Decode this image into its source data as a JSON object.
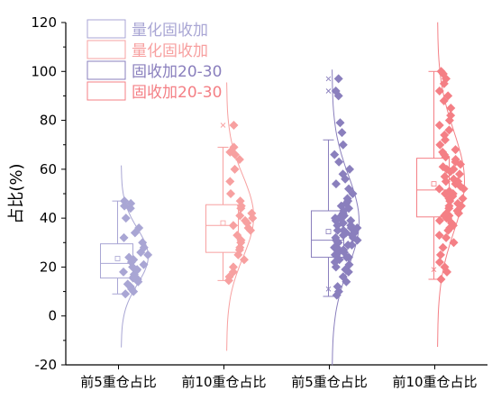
{
  "chart_data": {
    "type": "box-swarm-distribution",
    "ylabel": "占比(%)",
    "ylim": [
      -20,
      120
    ],
    "yticks": [
      -20,
      0,
      20,
      40,
      60,
      80,
      100,
      120
    ],
    "categories": [
      "前5重仓占比",
      "前10重仓占比",
      "前5重仓占比",
      "前10重仓占比"
    ],
    "legend": [
      {
        "label": "量化固收加",
        "color": "#a9a6d4"
      },
      {
        "label": "量化固收加",
        "color": "#f7a0a0"
      },
      {
        "label": "固收加20-30",
        "color": "#8a7fbd"
      },
      {
        "label": "固收加20-30",
        "color": "#f47f85"
      }
    ],
    "legend_position": "top-left",
    "series": [
      {
        "name": "量化固收加",
        "category": "前5重仓占比",
        "color": "#a9a6d4",
        "box": {
          "min": 9,
          "q1": 15.5,
          "median": 21.5,
          "q3": 29.5,
          "max": 47,
          "mean": 23.5
        },
        "outliers": [],
        "points": [
          9,
          10,
          11,
          12,
          13,
          14,
          15,
          15.5,
          16,
          17,
          18,
          18.5,
          19,
          20,
          21,
          22,
          23,
          24,
          25,
          26,
          28,
          30,
          32,
          34,
          36,
          40,
          44,
          45,
          46,
          47
        ]
      },
      {
        "name": "量化固收加",
        "category": "前10重仓占比",
        "color": "#f7a0a0",
        "box": {
          "min": 14.5,
          "q1": 26,
          "median": 37,
          "q3": 45.5,
          "max": 69,
          "mean": 38
        },
        "outliers": [
          78
        ],
        "points": [
          14.5,
          16,
          18,
          20,
          23,
          25,
          27,
          28,
          30,
          31,
          33,
          35,
          36,
          37,
          38,
          39,
          40,
          41,
          42,
          44,
          45,
          47,
          50,
          55,
          60,
          64,
          66,
          67,
          69,
          78
        ]
      },
      {
        "name": "固收加20-30",
        "category": "前5重仓占比",
        "color": "#8a7fbd",
        "box": {
          "min": 8,
          "q1": 24,
          "median": 31,
          "q3": 43,
          "max": 72,
          "mean": 34.5
        },
        "outliers": [
          11,
          92,
          97
        ],
        "points": [
          8.5,
          10,
          12,
          14,
          16,
          18,
          19,
          20,
          21,
          22,
          23,
          24,
          24,
          25,
          25,
          26,
          26,
          27,
          27,
          28,
          28,
          29,
          29,
          30,
          30,
          31,
          31,
          32,
          32,
          33,
          33,
          34,
          34,
          35,
          35,
          36,
          36,
          37,
          37,
          38,
          38,
          39,
          39,
          40,
          40,
          41,
          41,
          42,
          43,
          44,
          45,
          46,
          47,
          48,
          50,
          52,
          54,
          56,
          58,
          60,
          63,
          66,
          70,
          75,
          79,
          90,
          92,
          97
        ]
      },
      {
        "name": "固收加20-30",
        "category": "前10重仓占比",
        "color": "#f47f85",
        "box": {
          "min": 15,
          "q1": 40.5,
          "median": 51.5,
          "q3": 64.5,
          "max": 100,
          "mean": 54
        },
        "outliers": [
          19
        ],
        "points": [
          15,
          18,
          20,
          22,
          25,
          28,
          30,
          32,
          33,
          35,
          36,
          37,
          38,
          39,
          40,
          40,
          41,
          41,
          42,
          42,
          43,
          44,
          45,
          45,
          46,
          47,
          48,
          48,
          49,
          50,
          50,
          51,
          52,
          52,
          53,
          54,
          55,
          55,
          56,
          57,
          58,
          59,
          60,
          60,
          61,
          62,
          63,
          64,
          65,
          66,
          67,
          68,
          70,
          72,
          74,
          76,
          78,
          80,
          82,
          85,
          88,
          90,
          92,
          95,
          97,
          99,
          100
        ]
      }
    ]
  }
}
